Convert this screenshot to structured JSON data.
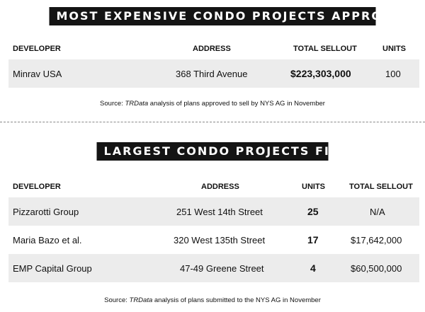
{
  "table1": {
    "title": "MOST EXPENSIVE CONDO PROJECTS APPROVED",
    "headers": {
      "developer": "DEVELOPER",
      "address": "ADDRESS",
      "total_sellout": "TOTAL SELLOUT",
      "units": "UNITS"
    },
    "rows": [
      {
        "developer": "Minrav USA",
        "address": "368 Third Avenue",
        "total_sellout": "$223,303,000",
        "units": "100"
      }
    ],
    "source_prefix": "Source: ",
    "source_italic": "TRData",
    "source_suffix": " analysis of plans approved to sell by NYS AG in November"
  },
  "table2": {
    "title": "LARGEST CONDO PROJECTS FILED",
    "headers": {
      "developer": "DEVELOPER",
      "address": "ADDRESS",
      "units": "UNITS",
      "total_sellout": "TOTAL SELLOUT"
    },
    "rows": [
      {
        "developer": "Pizzarotti Group",
        "address": "251 West 14th Street",
        "units": "25",
        "total_sellout": "N/A"
      },
      {
        "developer": "Maria Bazo et al.",
        "address": "320 West 135th Street",
        "units": "17",
        "total_sellout": "$17,642,000"
      },
      {
        "developer": "EMP Capital Group",
        "address": "47-49 Greene Street",
        "units": "4",
        "total_sellout": "$60,500,000"
      }
    ],
    "source_prefix": "Source: ",
    "source_italic": "TRData",
    "source_suffix": "  analysis of plans submitted to the NYS AG in November"
  }
}
